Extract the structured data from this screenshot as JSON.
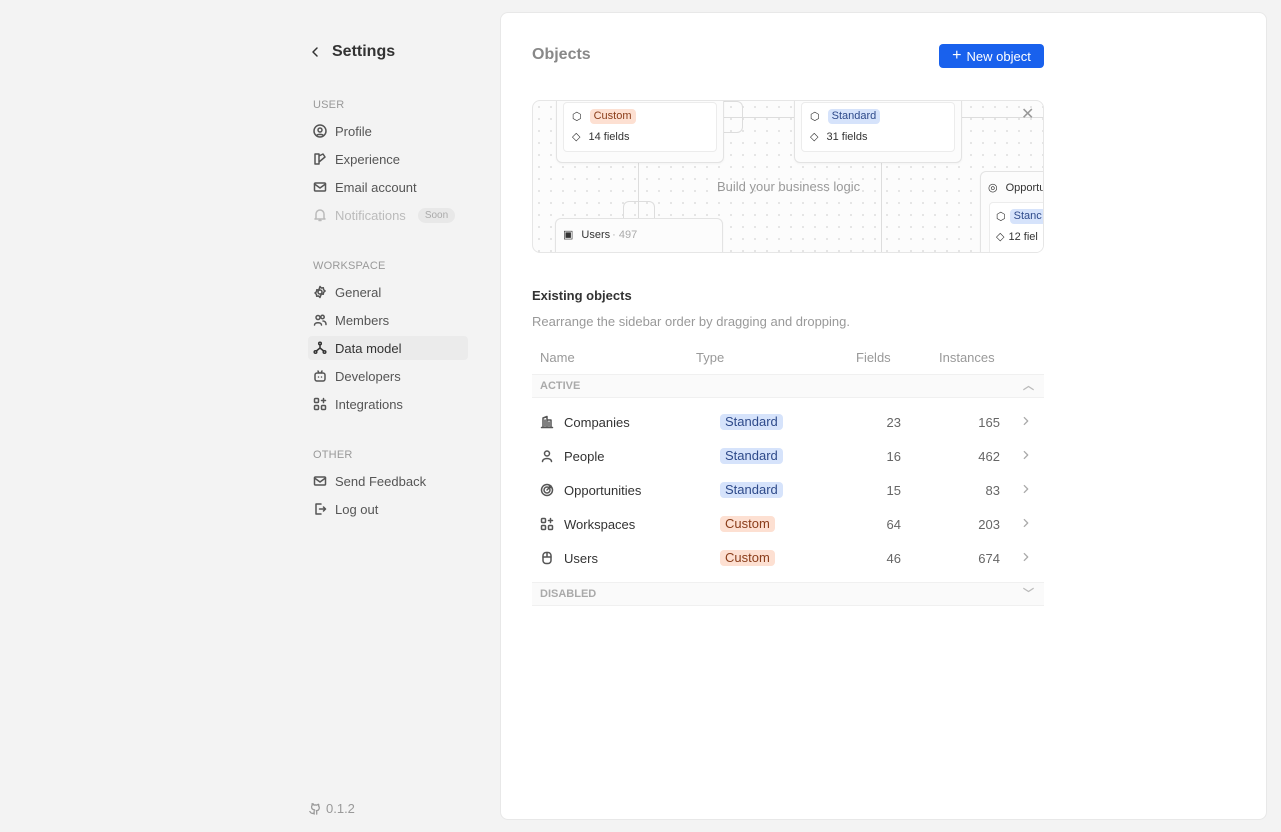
{
  "sidebar": {
    "title": "Settings",
    "sections": [
      {
        "label": "USER",
        "items": [
          {
            "label": "Profile",
            "icon": "user-circle-icon"
          },
          {
            "label": "Experience",
            "icon": "color-swatch-icon"
          },
          {
            "label": "Email account",
            "icon": "mail-icon"
          },
          {
            "label": "Notifications",
            "icon": "bell-icon",
            "badge": "Soon",
            "disabled": true
          }
        ]
      },
      {
        "label": "WORKSPACE",
        "items": [
          {
            "label": "General",
            "icon": "gear-icon"
          },
          {
            "label": "Members",
            "icon": "users-icon"
          },
          {
            "label": "Data model",
            "icon": "hierarchy-icon",
            "selected": true
          },
          {
            "label": "Developers",
            "icon": "robot-icon"
          },
          {
            "label": "Integrations",
            "icon": "apps-icon"
          }
        ]
      },
      {
        "label": "OTHER",
        "items": [
          {
            "label": "Send Feedback",
            "icon": "mail-icon"
          },
          {
            "label": "Log out",
            "icon": "logout-icon"
          }
        ]
      }
    ],
    "version": "0.1.2"
  },
  "main": {
    "title": "Objects",
    "new_button": "New object",
    "diagram": {
      "caption": "Build your business logic",
      "nodes": [
        {
          "badge": "Custom",
          "fields": "14 fields"
        },
        {
          "badge": "Standard",
          "fields": "31 fields"
        },
        {
          "title": "Opportu",
          "badge": "Stanc",
          "fields": "12 fiel"
        },
        {
          "title": "Users",
          "count": "· 497"
        }
      ]
    },
    "existing_title": "Existing objects",
    "existing_subtitle": "Rearrange the sidebar order by dragging and dropping.",
    "columns": [
      "Name",
      "Type",
      "Fields",
      "Instances"
    ],
    "group_active": "ACTIVE",
    "group_disabled": "DISABLED",
    "rows": [
      {
        "name": "Companies",
        "icon": "building-icon",
        "type": "Standard",
        "fields": "23",
        "instances": "165"
      },
      {
        "name": "People",
        "icon": "user-icon",
        "type": "Standard",
        "fields": "16",
        "instances": "462"
      },
      {
        "name": "Opportunities",
        "icon": "target-icon",
        "type": "Standard",
        "fields": "15",
        "instances": "83"
      },
      {
        "name": "Workspaces",
        "icon": "apps-icon",
        "type": "Custom",
        "fields": "64",
        "instances": "203"
      },
      {
        "name": "Users",
        "icon": "mouse-icon",
        "type": "Custom",
        "fields": "46",
        "instances": "674"
      }
    ],
    "colors": {
      "accent": "#1961ed",
      "standard_bg": "#d6e3fb",
      "custom_bg": "#fde0d2"
    }
  }
}
